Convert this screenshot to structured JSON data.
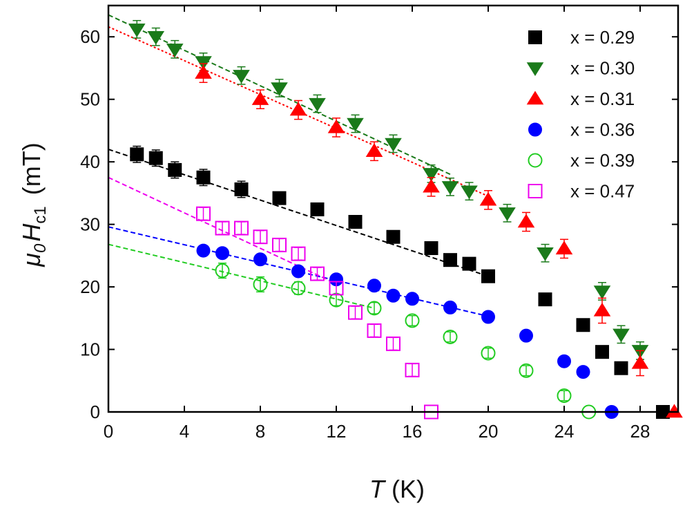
{
  "chart_data": {
    "type": "scatter",
    "title": "",
    "xlabel": "T (K)",
    "xlabel_parts": {
      "symbol": "T",
      "unit": " (K)"
    },
    "ylabel": "μ0Hc1 (mT)",
    "ylabel_parts": {
      "mu": "μ",
      "mu_sub": "0",
      "h": "H",
      "h_sub": "c1",
      "unit": " (mT)"
    },
    "xlim": [
      0,
      30
    ],
    "ylim": [
      0,
      65
    ],
    "xticks": [
      0,
      4,
      8,
      12,
      16,
      20,
      24,
      28
    ],
    "yticks": [
      0,
      10,
      20,
      30,
      40,
      50,
      60
    ],
    "xtick_labels": [
      "0",
      "4",
      "8",
      "12",
      "16",
      "20",
      "24",
      "28"
    ],
    "ytick_labels": [
      "0",
      "10",
      "20",
      "30",
      "40",
      "50",
      "60"
    ],
    "legend_position": "top-right",
    "series": [
      {
        "name": "x = 0.29",
        "marker": "square",
        "filled": true,
        "color": "#000000",
        "x": [
          1.5,
          2.5,
          3.5,
          5,
          7,
          9,
          11,
          13,
          15,
          17,
          18,
          19,
          20,
          23,
          25,
          26,
          27,
          29.2
        ],
        "y": [
          41.2,
          40.6,
          38.7,
          37.5,
          35.6,
          34.2,
          32.4,
          30.4,
          28.0,
          26.2,
          24.3,
          23.7,
          21.7,
          18.0,
          13.9,
          9.6,
          7.0,
          0.0
        ],
        "err": [
          1.3,
          1.3,
          1.3,
          1.3,
          1.3,
          0.8,
          0.8,
          0.6,
          0.6,
          0.6,
          0.6,
          0.6,
          0.6,
          0.5,
          0.5,
          0.5,
          0.5,
          0
        ],
        "fit": {
          "x0": 0,
          "y0": 42.0,
          "x1": 20,
          "y1": 21.7
        }
      },
      {
        "name": "x = 0.30",
        "marker": "triangle-down",
        "filled": true,
        "color": "#1a7a1a",
        "x": [
          1.5,
          2.5,
          3.5,
          5,
          7,
          9,
          11,
          13,
          15,
          17,
          18,
          19,
          21,
          23,
          26,
          27,
          28
        ],
        "y": [
          61.2,
          60.0,
          58.0,
          56.0,
          53.8,
          51.8,
          49.3,
          46.1,
          42.9,
          38.1,
          36.0,
          35.3,
          31.8,
          25.4,
          19.3,
          12.4,
          9.8
        ],
        "err": [
          1.4,
          1.4,
          1.4,
          1.4,
          1.4,
          1.4,
          1.4,
          1.4,
          1.4,
          1.4,
          1.4,
          1.4,
          1.4,
          1.4,
          1.4,
          1.4,
          1.4
        ],
        "fit": {
          "x0": 0,
          "y0": 63.5,
          "x1": 18,
          "y1": 38.0
        }
      },
      {
        "name": "x = 0.31",
        "marker": "triangle-up",
        "filled": true,
        "color": "#ff0000",
        "x": [
          5,
          8,
          10,
          12,
          14,
          17,
          20,
          22,
          24,
          26,
          28,
          29.8
        ],
        "y": [
          54.2,
          50.0,
          48.3,
          45.5,
          41.7,
          36.0,
          33.9,
          30.4,
          26.1,
          16.2,
          7.8,
          0.0
        ],
        "err": [
          1.5,
          1.5,
          1.5,
          1.5,
          1.5,
          1.5,
          1.5,
          1.5,
          1.5,
          2.0,
          2.0,
          0
        ],
        "fit": {
          "x0": 0,
          "y0": 61.6,
          "x1": 20,
          "y1": 34.5
        }
      },
      {
        "name": "x = 0.36",
        "marker": "circle",
        "filled": true,
        "color": "#0000ff",
        "x": [
          5,
          6,
          8,
          10,
          12,
          14,
          15,
          16,
          18,
          20,
          22,
          24,
          25,
          26.5
        ],
        "y": [
          25.8,
          25.4,
          24.4,
          22.5,
          21.2,
          20.2,
          18.6,
          18.1,
          16.7,
          15.2,
          12.2,
          8.1,
          6.4,
          0.0
        ],
        "err": [
          0,
          0,
          0,
          0,
          0,
          0,
          0,
          0,
          0,
          0,
          0,
          0,
          0,
          0
        ],
        "fit": {
          "x0": 0,
          "y0": 29.6,
          "x1": 20,
          "y1": 15.3
        }
      },
      {
        "name": "x = 0.39",
        "marker": "circle",
        "filled": false,
        "color": "#22cc22",
        "x": [
          6,
          8,
          10,
          12,
          14,
          16,
          18,
          20,
          22,
          24,
          25.3
        ],
        "y": [
          22.6,
          20.4,
          19.8,
          17.9,
          16.6,
          14.6,
          12.0,
          9.4,
          6.6,
          2.6,
          0.0
        ],
        "err": [
          1.2,
          1.2,
          1.0,
          0.9,
          0.9,
          0.8,
          0.8,
          0.8,
          0.8,
          0.8,
          0
        ],
        "fit": {
          "x0": 0,
          "y0": 26.8,
          "x1": 14,
          "y1": 16.6
        }
      },
      {
        "name": "x = 0.47",
        "marker": "square",
        "filled": false,
        "color": "#ee00ee",
        "x": [
          5,
          6,
          7,
          8,
          9,
          10,
          11,
          12,
          13,
          14,
          15,
          16,
          17
        ],
        "y": [
          31.7,
          29.4,
          29.4,
          28.0,
          26.7,
          25.3,
          22.1,
          19.8,
          15.9,
          13.0,
          10.9,
          6.7,
          0.0
        ],
        "err": [
          1.0,
          1.0,
          1.0,
          1.0,
          1.0,
          1.0,
          1.0,
          1.0,
          1.0,
          1.0,
          1.0,
          1.0,
          0
        ],
        "fit": {
          "x0": 0,
          "y0": 37.5,
          "x1": 12,
          "y1": 20.5
        }
      }
    ]
  }
}
